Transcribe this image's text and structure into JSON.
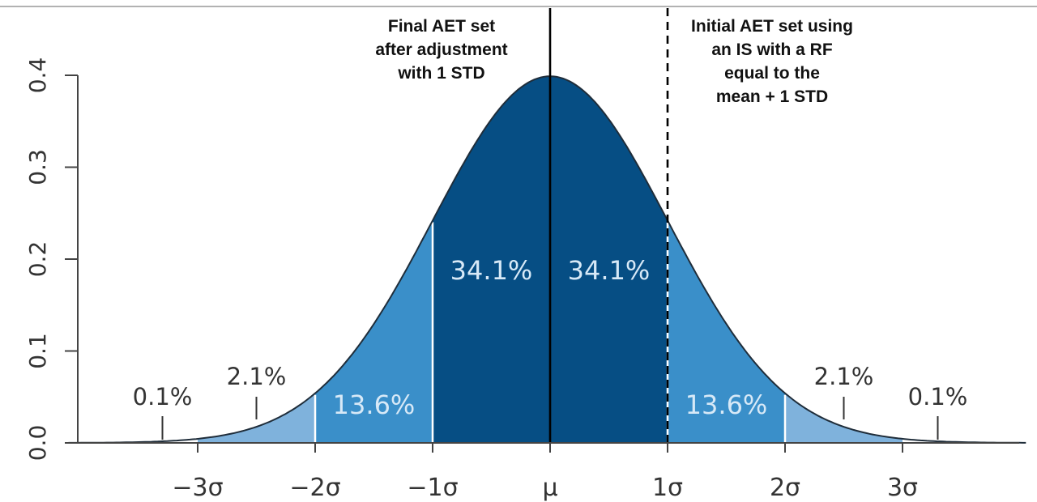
{
  "chart_data": {
    "type": "area",
    "distribution": "normal",
    "mean": 0,
    "std": 1,
    "ylim": [
      0,
      0.4
    ],
    "xlim": [
      -4.1,
      4.05
    ],
    "yticks": [
      {
        "value": 0.0,
        "label": "0.0"
      },
      {
        "value": 0.1,
        "label": "0.1"
      },
      {
        "value": 0.2,
        "label": "0.2"
      },
      {
        "value": 0.3,
        "label": "0.3"
      },
      {
        "value": 0.4,
        "label": "0.4"
      }
    ],
    "xticks": [
      {
        "value": -3,
        "label": "−3σ"
      },
      {
        "value": -2,
        "label": "−2σ"
      },
      {
        "value": -1,
        "label": "−1σ"
      },
      {
        "value": 0,
        "label": "μ"
      },
      {
        "value": 1,
        "label": "1σ"
      },
      {
        "value": 2,
        "label": "2σ"
      },
      {
        "value": 3,
        "label": "3σ"
      }
    ],
    "regions": [
      {
        "from": -2,
        "to": -1,
        "percent": "13.6%",
        "color": "#3a8fc9"
      },
      {
        "from": -1,
        "to": 0,
        "percent": "34.1%",
        "color": "#064e84"
      },
      {
        "from": 0,
        "to": 1,
        "percent": "34.1%",
        "color": "#064e84"
      },
      {
        "from": 1,
        "to": 2,
        "percent": "13.6%",
        "color": "#3a8fc9"
      }
    ],
    "tails": [
      {
        "from": -3,
        "to": -2,
        "color": "#7fb2dc"
      },
      {
        "from": 2,
        "to": 3,
        "color": "#7fb2dc"
      }
    ],
    "outer_labels": [
      {
        "x": -2.5,
        "text": "2.1%"
      },
      {
        "x": 2.5,
        "text": "2.1%"
      },
      {
        "x": -3.3,
        "text": "0.1%"
      },
      {
        "x": 3.3,
        "text": "0.1%"
      }
    ],
    "reference_lines": [
      {
        "x": 0,
        "style": "solid",
        "label": "Final AET set\nafter adjustment\nwith 1 STD"
      },
      {
        "x": 1,
        "style": "dashed",
        "label": "Initial AET set using\nan IS with a RF\nequal to the\nmean + 1 STD"
      }
    ],
    "colors": {
      "curve": "#1f2d3a",
      "axis": "#444444"
    }
  }
}
